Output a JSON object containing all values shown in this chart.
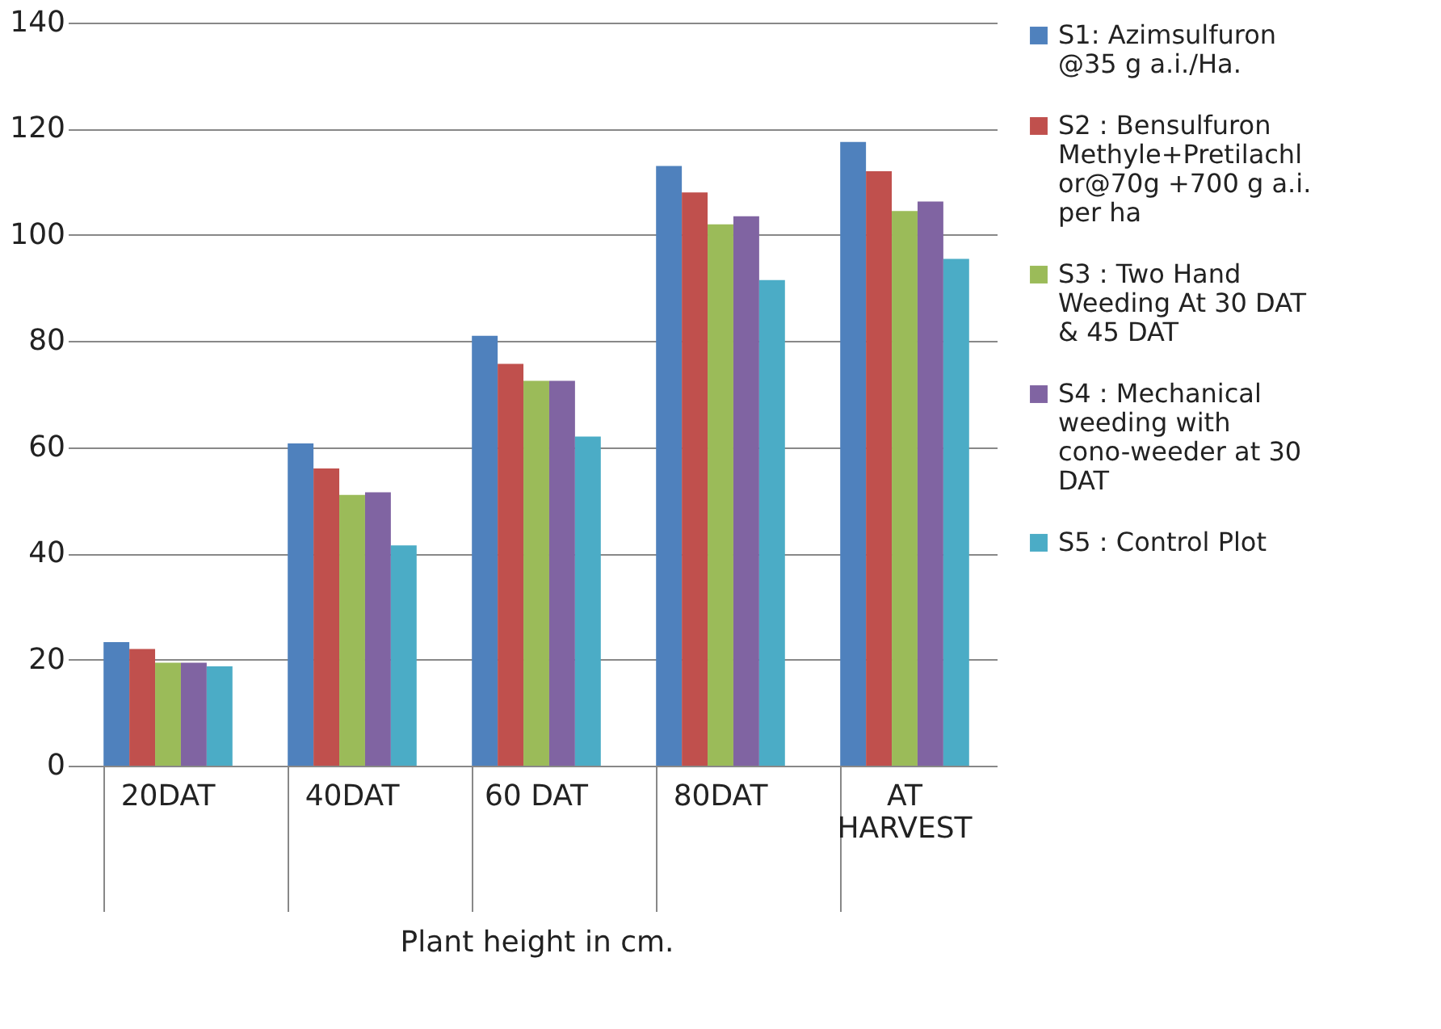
{
  "chart_data": {
    "type": "bar",
    "xlabel": "Plant height in cm.",
    "categories": [
      "20DAT",
      "40DAT",
      "60 DAT",
      "80DAT",
      "AT HARVEST"
    ],
    "series": [
      {
        "name": "S1: Azimsulfuron @35 g a.i./Ha.",
        "color": "#4f81bd",
        "values": [
          23.3,
          60.7,
          81,
          113,
          117.5
        ]
      },
      {
        "name": "S2 : Bensulfuron Methyle+Pretilachlor@70g +700 g a.i. per ha",
        "color": "#c0504d",
        "values": [
          22,
          56,
          75.7,
          108,
          112
        ]
      },
      {
        "name": "S3 : Two Hand Weeding At 30 DAT & 45 DAT",
        "color": "#9bbb59",
        "values": [
          19.4,
          51,
          72.5,
          102,
          104.5
        ]
      },
      {
        "name": "S4 : Mechanical weeding with cono-weeder at 30 DAT",
        "color": "#8064a2",
        "values": [
          19.4,
          51.5,
          72.5,
          103.5,
          106.3
        ]
      },
      {
        "name": "S5 : Control Plot",
        "color": "#4bacc6",
        "values": [
          18.7,
          41.5,
          62,
          91.5,
          95.5
        ]
      }
    ],
    "ylim": [
      0,
      140
    ],
    "yticks": [
      0,
      20,
      40,
      60,
      80,
      100,
      120,
      140
    ],
    "grid": "y",
    "legend": "right"
  }
}
